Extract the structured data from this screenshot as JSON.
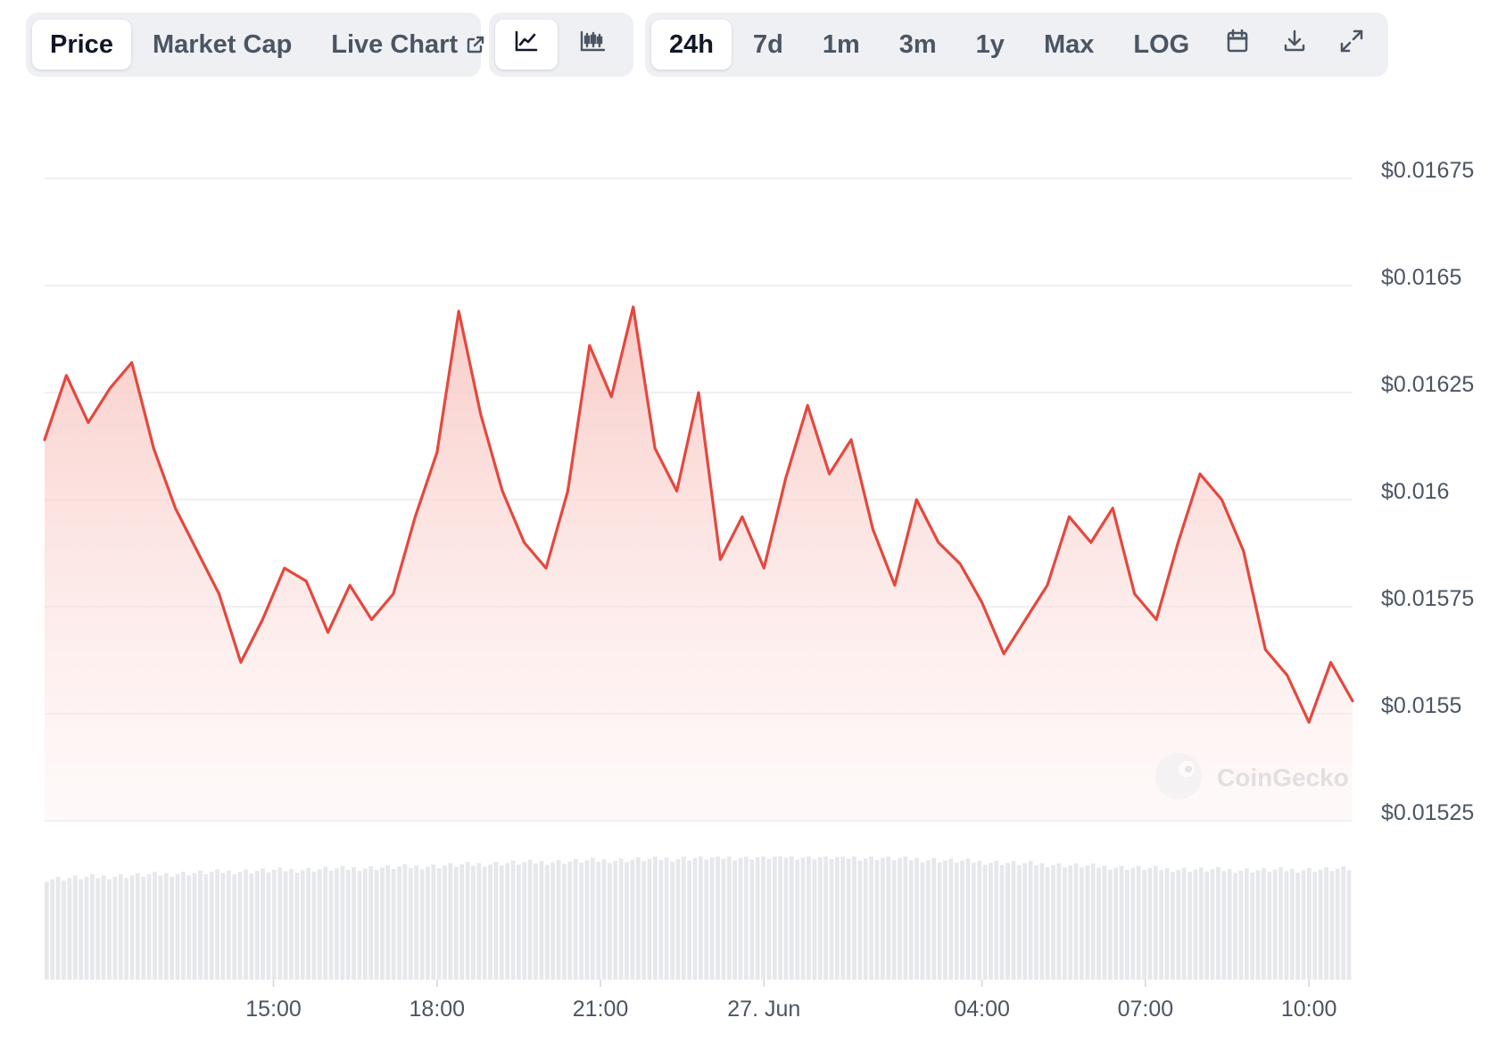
{
  "tabs": {
    "price": "Price",
    "market_cap": "Market Cap",
    "live_chart": "Live Chart"
  },
  "chart_type_icons": [
    "line-chart-icon",
    "candlestick-chart-icon"
  ],
  "ranges": [
    "24h",
    "7d",
    "1m",
    "3m",
    "1y",
    "Max",
    "LOG"
  ],
  "active_range": "24h",
  "tool_icons": [
    "calendar-icon",
    "download-icon",
    "fullscreen-icon"
  ],
  "watermark": "CoinGecko",
  "colors": {
    "line": "#e5483e",
    "fill_top": "#f8c9c5",
    "grid": "#e9ebef",
    "volume": "#e6e8ec",
    "active_tab_bg": "#ffffff",
    "tab_bar_bg": "#eef0f3"
  },
  "chart_data": {
    "type": "area",
    "title": "",
    "xlabel": "",
    "ylabel": "",
    "x_tick_labels": [
      "15:00",
      "18:00",
      "21:00",
      "27. Jun",
      "04:00",
      "07:00",
      "10:00"
    ],
    "x_tick_hours": [
      15,
      18,
      21,
      24,
      28,
      31,
      34
    ],
    "y_tick_labels": [
      "$0.01675",
      "$0.0165",
      "$0.01625",
      "$0.016",
      "$0.01575",
      "$0.0155",
      "$0.01525"
    ],
    "y_ticks": [
      0.01675,
      0.0165,
      0.01625,
      0.016,
      0.01575,
      0.0155,
      0.01525
    ],
    "ylim": [
      0.01525,
      0.01675
    ],
    "grid": true,
    "series": [
      {
        "x": [
          10.8,
          11.2,
          11.6,
          12.0,
          12.4,
          12.8,
          13.2,
          13.6,
          14.0,
          14.4,
          14.8,
          15.2,
          15.6,
          16.0,
          16.4,
          16.8,
          17.2,
          17.6,
          18.0,
          18.4,
          18.8,
          19.2,
          19.6,
          20.0,
          20.4,
          20.8,
          21.2,
          21.6,
          22.0,
          22.4,
          22.8,
          23.2,
          23.6,
          24.0,
          24.4,
          24.8,
          25.2,
          25.6,
          26.0,
          26.4,
          26.8,
          27.2,
          27.6,
          28.0,
          28.4,
          28.8,
          29.2,
          29.6,
          30.0,
          30.4,
          30.8,
          31.2,
          31.6,
          32.0,
          32.4,
          32.8,
          33.2,
          33.6,
          34.0,
          34.4,
          34.8
        ],
        "y": [
          0.01614,
          0.01629,
          0.01618,
          0.01626,
          0.01632,
          0.01612,
          0.01598,
          0.01588,
          0.01578,
          0.01562,
          0.01572,
          0.01584,
          0.01581,
          0.01569,
          0.0158,
          0.01572,
          0.01578,
          0.01596,
          0.01611,
          0.01644,
          0.0162,
          0.01602,
          0.0159,
          0.01584,
          0.01602,
          0.01636,
          0.01624,
          0.01645,
          0.01612,
          0.01602,
          0.01625,
          0.01586,
          0.01596,
          0.01584,
          0.01605,
          0.01622,
          0.01606,
          0.01614,
          0.01593,
          0.0158,
          0.016,
          0.0159,
          0.01585,
          0.01576,
          0.01564,
          0.01572,
          0.0158,
          0.01596,
          0.0159,
          0.01598,
          0.01578,
          0.01572,
          0.0159,
          0.01606,
          0.016,
          0.01588,
          0.01565,
          0.01559,
          0.01548,
          0.01562,
          0.01553
        ]
      }
    ],
    "volume": {
      "x_range": [
        10.8,
        34.8
      ],
      "relative_levels": [
        0.82,
        0.85,
        0.88,
        0.9,
        0.92,
        0.95,
        0.97,
        0.99,
        1.0,
        0.99,
        0.96,
        0.93,
        0.9,
        0.89,
        0.9
      ]
    }
  }
}
